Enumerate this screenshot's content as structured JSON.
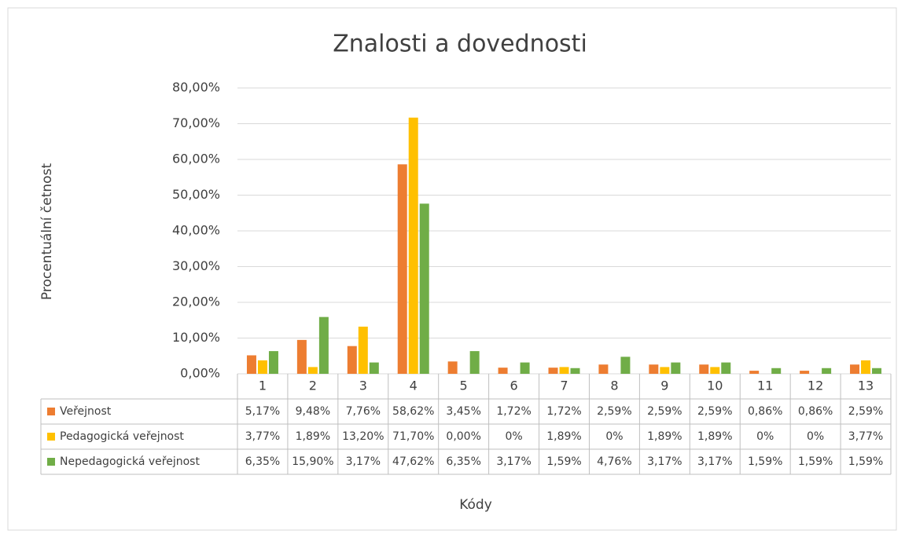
{
  "chart_data": {
    "type": "bar",
    "title": "Znalosti a dovednosti",
    "x_label": "Kódy",
    "y_label": "Procentuální četnost",
    "categories": [
      "1",
      "2",
      "3",
      "4",
      "5",
      "6",
      "7",
      "8",
      "9",
      "10",
      "11",
      "12",
      "13"
    ],
    "series": [
      {
        "name": "Veřejnost",
        "color": "#ed7d31",
        "values": [
          5.17,
          9.48,
          7.76,
          58.62,
          3.45,
          1.72,
          1.72,
          2.59,
          2.59,
          2.59,
          0.86,
          0.86,
          2.59
        ],
        "value_labels": [
          "5,17%",
          "9,48%",
          "7,76%",
          "58,62%",
          "3,45%",
          "1,72%",
          "1,72%",
          "2,59%",
          "2,59%",
          "2,59%",
          "0,86%",
          "0,86%",
          "2,59%"
        ]
      },
      {
        "name": "Pedagogická veřejnost",
        "color": "#ffc000",
        "values": [
          3.77,
          1.89,
          13.2,
          71.7,
          0,
          0,
          1.89,
          0,
          1.89,
          1.89,
          0,
          0,
          3.77
        ],
        "value_labels": [
          "3,77%",
          "1,89%",
          "13,20%",
          "71,70%",
          "0,00%",
          "0%",
          "1,89%",
          "0%",
          "1,89%",
          "1,89%",
          "0%",
          "0%",
          "3,77%"
        ]
      },
      {
        "name": "Nepedagogická veřejnost",
        "color": "#70ad47",
        "values": [
          6.35,
          15.9,
          3.17,
          47.62,
          6.35,
          3.17,
          1.59,
          4.76,
          3.17,
          3.17,
          1.59,
          1.59,
          1.59
        ],
        "value_labels": [
          "6,35%",
          "15,90%",
          "3,17%",
          "47,62%",
          "6,35%",
          "3,17%",
          "1,59%",
          "4,76%",
          "3,17%",
          "3,17%",
          "1,59%",
          "1,59%",
          "1,59%"
        ]
      }
    ],
    "ylim": [
      0,
      80
    ],
    "yticks": [
      {
        "value": 0,
        "label": "0,00%"
      },
      {
        "value": 10,
        "label": "10,00%"
      },
      {
        "value": 20,
        "label": "20,00%"
      },
      {
        "value": 30,
        "label": "30,00%"
      },
      {
        "value": 40,
        "label": "40,00%"
      },
      {
        "value": 50,
        "label": "50,00%"
      },
      {
        "value": 60,
        "label": "60,00%"
      },
      {
        "value": 70,
        "label": "70,00%"
      },
      {
        "value": 80,
        "label": "80,00%"
      }
    ],
    "grid": true
  }
}
